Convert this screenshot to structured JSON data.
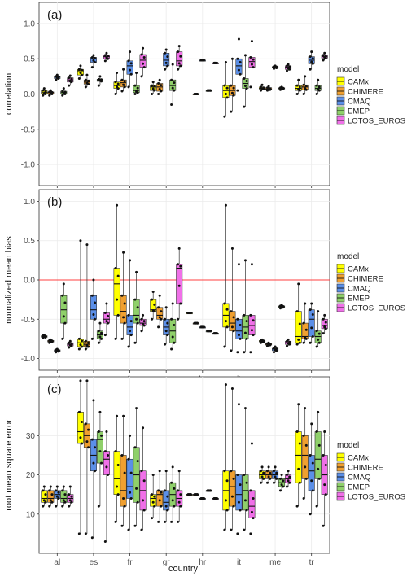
{
  "chart_data": {
    "type": "boxplot",
    "xlabel": "country",
    "categories": [
      "al",
      "es",
      "fr",
      "gr",
      "hr",
      "it",
      "me",
      "tr"
    ],
    "legend": {
      "title": "model",
      "placement": "right",
      "entries": [
        {
          "name": "CAMx",
          "color": "#ffff00"
        },
        {
          "name": "CHIMERE",
          "color": "#f0a030"
        },
        {
          "name": "CMAQ",
          "color": "#5b8fe8"
        },
        {
          "name": "EMEP",
          "color": "#8fd06a"
        },
        {
          "name": "LOTOS_EUROS",
          "color": "#f070e8"
        }
      ]
    },
    "panels": [
      {
        "label": "(a)",
        "ylabel": "correlation",
        "ylim": [
          -1.3,
          1.3
        ],
        "yticks": [
          "-1.0",
          "-0.5",
          "0.0",
          "0.5",
          "1.0"
        ],
        "reference_line": 0,
        "reference_color": "#ff4040",
        "boxes": {
          "al": [
            [
              -0.02,
              0.0,
              0.02,
              0.05,
              0.08
            ],
            [
              -0.02,
              0.0,
              0.02,
              0.03,
              0.05
            ],
            [
              0.2,
              0.22,
              0.24,
              0.25,
              0.27
            ],
            [
              -0.02,
              0.0,
              0.02,
              0.04,
              0.08
            ],
            [
              0.12,
              0.17,
              0.2,
              0.23,
              0.26
            ]
          ],
          "es": [
            [
              0.22,
              0.27,
              0.33,
              0.35,
              0.4
            ],
            [
              0.1,
              0.14,
              0.17,
              0.2,
              0.27
            ],
            [
              0.38,
              0.45,
              0.5,
              0.52,
              0.55
            ],
            [
              0.12,
              0.18,
              0.2,
              0.21,
              0.25
            ],
            [
              0.47,
              0.5,
              0.53,
              0.55,
              0.58
            ]
          ],
          "fr": [
            [
              0.0,
              0.08,
              0.12,
              0.17,
              0.3
            ],
            [
              0.04,
              0.1,
              0.16,
              0.2,
              0.35
            ],
            [
              0.1,
              0.28,
              0.4,
              0.47,
              0.6
            ],
            [
              0.0,
              0.02,
              0.05,
              0.12,
              0.3
            ],
            [
              0.25,
              0.38,
              0.48,
              0.56,
              0.65
            ]
          ],
          "gr": [
            [
              0.0,
              0.05,
              0.1,
              0.12,
              0.17
            ],
            [
              0.0,
              0.04,
              0.1,
              0.15,
              0.2
            ],
            [
              0.35,
              0.4,
              0.48,
              0.58,
              0.63
            ],
            [
              -0.15,
              0.05,
              0.12,
              0.2,
              0.42
            ],
            [
              0.35,
              0.4,
              0.47,
              0.6,
              0.68
            ]
          ],
          "hr": [
            [
              null
            ],
            [
              0.0,
              0.0,
              0.0,
              0.0,
              0.0
            ],
            [
              0.48,
              0.48,
              0.48,
              0.48,
              0.48
            ],
            [
              0.05,
              0.05,
              0.05,
              0.05,
              0.05
            ],
            [
              0.44,
              0.44,
              0.44,
              0.44,
              0.44
            ]
          ],
          "it": [
            [
              -0.32,
              -0.05,
              0.05,
              0.12,
              0.45
            ],
            [
              -0.25,
              -0.02,
              0.05,
              0.12,
              0.5
            ],
            [
              0.05,
              0.28,
              0.4,
              0.5,
              0.78
            ],
            [
              -0.18,
              0.08,
              0.15,
              0.22,
              0.55
            ],
            [
              0.1,
              0.38,
              0.46,
              0.52,
              0.75
            ]
          ],
          "me": [
            [
              0.05,
              0.07,
              0.08,
              0.1,
              0.13
            ],
            [
              0.05,
              0.06,
              0.07,
              0.09,
              0.11
            ],
            [
              0.36,
              0.37,
              0.38,
              0.39,
              0.4
            ],
            [
              0.06,
              0.07,
              0.08,
              0.09,
              0.1
            ],
            [
              0.33,
              0.35,
              0.38,
              0.4,
              0.42
            ]
          ],
          "tr": [
            [
              0.0,
              0.05,
              0.08,
              0.12,
              0.2
            ],
            [
              0.0,
              0.06,
              0.1,
              0.13,
              0.25
            ],
            [
              0.35,
              0.43,
              0.48,
              0.53,
              0.6
            ],
            [
              0.0,
              0.05,
              0.08,
              0.12,
              0.2
            ],
            [
              0.48,
              0.51,
              0.53,
              0.55,
              0.58
            ]
          ]
        }
      },
      {
        "label": "(b)",
        "ylabel": "normalized mean bias",
        "ylim": [
          -1.15,
          1.15
        ],
        "yticks": [
          "-1.0",
          "-0.5",
          "0.0",
          "0.5",
          "1.0"
        ],
        "reference_line": 0,
        "reference_color": "#ff4040",
        "boxes": {
          "al": [
            [
              -0.74,
              -0.73,
              -0.72,
              -0.71,
              -0.7
            ],
            [
              -0.8,
              -0.79,
              -0.78,
              -0.77,
              -0.76
            ],
            [
              -0.92,
              -0.91,
              -0.9,
              -0.89,
              -0.88
            ],
            [
              -0.75,
              -0.55,
              -0.38,
              -0.2,
              -0.05
            ],
            [
              -0.86,
              -0.84,
              -0.82,
              -0.8,
              -0.78
            ]
          ],
          "es": [
            [
              -0.88,
              -0.85,
              -0.8,
              -0.75,
              0.5
            ],
            [
              -0.88,
              -0.85,
              -0.82,
              -0.78,
              0.45
            ],
            [
              -0.75,
              -0.5,
              -0.38,
              -0.2,
              0.0
            ],
            [
              -0.8,
              -0.75,
              -0.7,
              -0.65,
              -0.55
            ],
            [
              -0.7,
              -0.55,
              -0.5,
              -0.42,
              -0.3
            ]
          ],
          "fr": [
            [
              -0.75,
              -0.45,
              -0.05,
              0.15,
              0.95
            ],
            [
              -0.75,
              -0.55,
              -0.4,
              -0.2,
              0.35
            ],
            [
              -0.85,
              -0.7,
              -0.6,
              -0.45,
              0.25
            ],
            [
              -0.8,
              -0.55,
              -0.45,
              -0.25,
              0.1
            ],
            [
              -0.65,
              -0.58,
              -0.55,
              -0.5,
              -0.45
            ]
          ],
          "gr": [
            [
              -0.5,
              -0.4,
              -0.38,
              -0.25,
              -0.15
            ],
            [
              -0.6,
              -0.5,
              -0.45,
              -0.35,
              -0.2
            ],
            [
              -0.82,
              -0.7,
              -0.6,
              -0.5,
              -0.35
            ],
            [
              -0.88,
              -0.8,
              -0.65,
              -0.5,
              -0.3
            ],
            [
              -0.5,
              -0.3,
              0.15,
              0.2,
              0.4
            ]
          ],
          "hr": [
            [
              -0.42,
              -0.42,
              -0.42,
              -0.42,
              -0.42
            ],
            [
              -0.55,
              -0.55,
              -0.55,
              -0.55,
              -0.55
            ],
            [
              -0.6,
              -0.6,
              -0.6,
              -0.6,
              -0.6
            ],
            [
              -0.65,
              -0.65,
              -0.65,
              -0.65,
              -0.65
            ],
            [
              -0.68,
              -0.68,
              -0.68,
              -0.68,
              -0.68
            ]
          ],
          "it": [
            [
              -0.85,
              -0.6,
              -0.45,
              -0.3,
              0.95
            ],
            [
              -0.9,
              -0.65,
              -0.55,
              -0.4,
              0.4
            ],
            [
              -0.92,
              -0.75,
              -0.65,
              -0.5,
              0.2
            ],
            [
              -0.92,
              -0.75,
              -0.6,
              -0.45,
              0.25
            ],
            [
              -0.92,
              -0.7,
              -0.58,
              -0.45,
              0.2
            ]
          ],
          "me": [
            [
              -0.8,
              -0.79,
              -0.78,
              -0.77,
              -0.76
            ],
            [
              -0.84,
              -0.83,
              -0.82,
              -0.81,
              -0.8
            ],
            [
              -0.92,
              -0.9,
              -0.88,
              -0.87,
              -0.85
            ],
            [
              -0.36,
              -0.35,
              -0.34,
              -0.33,
              -0.32
            ],
            [
              -0.84,
              -0.82,
              -0.8,
              -0.78,
              -0.76
            ]
          ],
          "tr": [
            [
              -0.82,
              -0.8,
              -0.72,
              -0.4,
              -0.05
            ],
            [
              -0.8,
              -0.75,
              -0.72,
              -0.55,
              -0.3
            ],
            [
              -0.8,
              -0.72,
              -0.5,
              -0.38,
              -0.3
            ],
            [
              -0.85,
              -0.8,
              -0.72,
              -0.65,
              -0.4
            ],
            [
              -0.68,
              -0.62,
              -0.58,
              -0.5,
              -0.45
            ]
          ]
        }
      },
      {
        "label": "(c)",
        "ylabel": "root mean square error",
        "ylim": [
          0,
          45
        ],
        "yticks": [
          "10",
          "20",
          "30"
        ],
        "boxes": {
          "al": [
            [
              12,
              13,
              14,
              16,
              17
            ],
            [
              12,
              13,
              14,
              16,
              17
            ],
            [
              12,
              14,
              15,
              16,
              17
            ],
            [
              12,
              13,
              14,
              16,
              17
            ],
            [
              12,
              13,
              14,
              15,
              17
            ]
          ],
          "es": [
            [
              5,
              28,
              31,
              36,
              44
            ],
            [
              5,
              27,
              30,
              33,
              44
            ],
            [
              4,
              21,
              25,
              29,
              39
            ],
            [
              12,
              23,
              29,
              31,
              36
            ],
            [
              3,
              20,
              24,
              26,
              31
            ]
          ],
          "fr": [
            [
              8,
              15,
              19,
              26,
              35
            ],
            [
              7,
              12,
              16,
              25,
              35
            ],
            [
              6,
              14,
              17,
              24,
              30
            ],
            [
              7,
              13,
              20,
              27,
              37
            ],
            [
              6,
              11,
              16,
              21,
              32
            ]
          ],
          "gr": [
            [
              9,
              12,
              14,
              15,
              20
            ],
            [
              8,
              12,
              15,
              16,
              21
            ],
            [
              8,
              11,
              13,
              16,
              21
            ],
            [
              8,
              12,
              15,
              18,
              22
            ],
            [
              8,
              12,
              14,
              16,
              21
            ]
          ],
          "hr": [
            [
              15,
              15,
              15,
              15,
              15
            ],
            [
              15,
              15,
              15,
              15,
              15
            ],
            [
              14,
              14,
              14,
              14,
              14
            ],
            [
              16,
              16,
              16,
              16,
              16
            ],
            [
              14,
              14,
              14,
              14,
              14
            ]
          ],
          "it": [
            [
              6,
              11,
              16,
              21,
              43
            ],
            [
              6,
              12,
              17,
              21,
              42
            ],
            [
              5,
              11,
              15,
              20,
              38
            ],
            [
              6,
              11,
              16,
              20,
              37
            ],
            [
              5,
              9,
              12,
              16,
              28
            ]
          ],
          "me": [
            [
              18,
              19,
              20,
              21,
              22
            ],
            [
              18,
              19,
              20,
              21,
              22
            ],
            [
              18,
              19,
              20,
              21,
              22
            ],
            [
              16,
              17,
              18,
              19,
              20
            ],
            [
              17,
              18,
              19,
              20,
              21
            ]
          ],
          "tr": [
            [
              12,
              18,
              25,
              31,
              38
            ],
            [
              14,
              19,
              25,
              30,
              37
            ],
            [
              10,
              16,
              21,
              25,
              33
            ],
            [
              12,
              19,
              24,
              31,
              36
            ],
            [
              7,
              15,
              20,
              25,
              31
            ]
          ]
        }
      }
    ]
  }
}
